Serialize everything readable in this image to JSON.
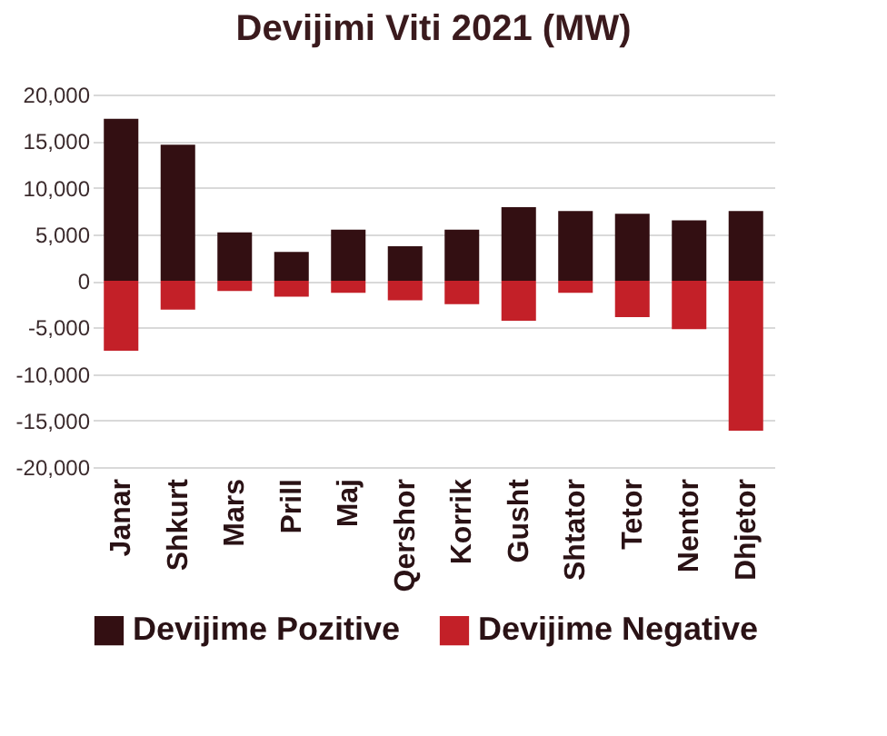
{
  "chart_data": {
    "type": "bar",
    "title": "Devijimi Viti 2021 (MW)",
    "stacked": true,
    "categories": [
      "Janar",
      "Shkurt",
      "Mars",
      "Prill",
      "Maj",
      "Qershor",
      "Korrik",
      "Gusht",
      "Shtator",
      "Tetor",
      "Nentor",
      "Dhjetor"
    ],
    "series": [
      {
        "name": "Devijime Pozitive",
        "color": "#330f12",
        "values": [
          17400,
          14600,
          5200,
          3100,
          5500,
          3700,
          5500,
          7900,
          7500,
          7200,
          6500,
          7500
        ]
      },
      {
        "name": "Devijime Negative",
        "color": "#c32028",
        "values": [
          -7500,
          -3100,
          -1100,
          -1700,
          -1300,
          -2100,
          -2500,
          -4300,
          -1300,
          -3900,
          -5200,
          -16100
        ]
      }
    ],
    "ylim": [
      -20000,
      20000
    ],
    "yticks": [
      {
        "value": -20000,
        "label": "-20,000"
      },
      {
        "value": -15000,
        "label": "-15,000"
      },
      {
        "value": -10000,
        "label": "-10,000"
      },
      {
        "value": -5000,
        "label": "-5,000"
      },
      0,
      {
        "value": 5000,
        "label": "5,000"
      },
      {
        "value": 10000,
        "label": "10,000"
      },
      {
        "value": 15000,
        "label": "15,000"
      },
      {
        "value": 20000,
        "label": "20,000"
      }
    ],
    "grid": "y",
    "legend": "bottom"
  }
}
